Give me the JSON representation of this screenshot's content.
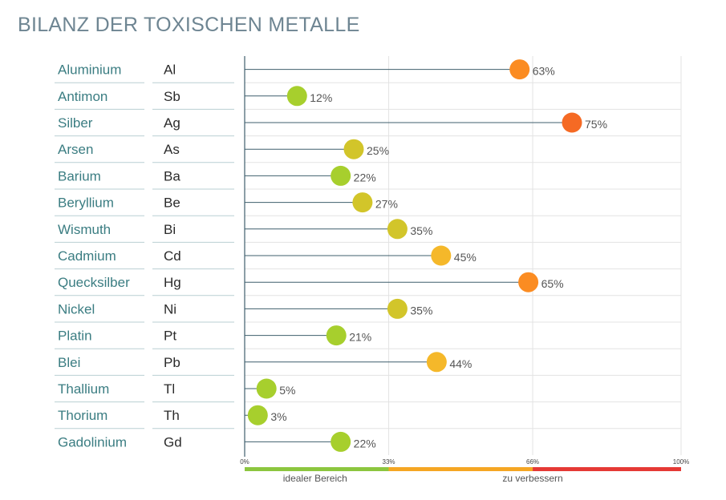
{
  "title": "BILANZ DER TOXISCHEN METALLE",
  "chart_data": {
    "type": "lollipop",
    "title": "BILANZ DER TOXISCHEN METALLE",
    "unit": "%",
    "xlim": [
      0,
      100
    ],
    "rows": [
      {
        "name": "Aluminium",
        "symbol": "Al",
        "value": 63,
        "label": "63%"
      },
      {
        "name": "Antimon",
        "symbol": "Sb",
        "value": 12,
        "label": "12%"
      },
      {
        "name": "Silber",
        "symbol": "Ag",
        "value": 75,
        "label": "75%"
      },
      {
        "name": "Arsen",
        "symbol": "As",
        "value": 25,
        "label": "25%"
      },
      {
        "name": "Barium",
        "symbol": "Ba",
        "value": 22,
        "label": "22%"
      },
      {
        "name": "Beryllium",
        "symbol": "Be",
        "value": 27,
        "label": "27%"
      },
      {
        "name": "Wismuth",
        "symbol": "Bi",
        "value": 35,
        "label": "35%"
      },
      {
        "name": "Cadmium",
        "symbol": "Cd",
        "value": 45,
        "label": "45%"
      },
      {
        "name": "Quecksilber",
        "symbol": "Hg",
        "value": 65,
        "label": "65%"
      },
      {
        "name": "Nickel",
        "symbol": "Ni",
        "value": 35,
        "label": "35%"
      },
      {
        "name": "Platin",
        "symbol": "Pt",
        "value": 21,
        "label": "21%"
      },
      {
        "name": "Blei",
        "symbol": "Pb",
        "value": 44,
        "label": "44%"
      },
      {
        "name": "Thallium",
        "symbol": "Tl",
        "value": 5,
        "label": "5%"
      },
      {
        "name": "Thorium",
        "symbol": "Th",
        "value": 3,
        "label": "3%"
      },
      {
        "name": "Gadolinium",
        "symbol": "Gd",
        "value": 22,
        "label": "22%"
      }
    ],
    "ticks": [
      {
        "value": 0,
        "label": "0%"
      },
      {
        "value": 33,
        "label": "33%"
      },
      {
        "value": 66,
        "label": "66%"
      },
      {
        "value": 100,
        "label": "100%"
      }
    ],
    "zones": [
      {
        "from": 0,
        "to": 33,
        "label": "idealer Bereich",
        "color": "#8cc63f"
      },
      {
        "from": 33,
        "to": 66,
        "label": "zu verbessern",
        "color": "#f5a623"
      },
      {
        "from": 66,
        "to": 100,
        "label": "",
        "color": "#e53935"
      }
    ],
    "marker_colors": {
      "ideal": "#a7cf2d",
      "medium": "#d2c52a",
      "elevated": "#f5b82a",
      "high": "#fb8c22",
      "very_high": "#f56a24"
    },
    "axis_color": "#3f5f6d",
    "grid_color": "#e3e3e3"
  }
}
